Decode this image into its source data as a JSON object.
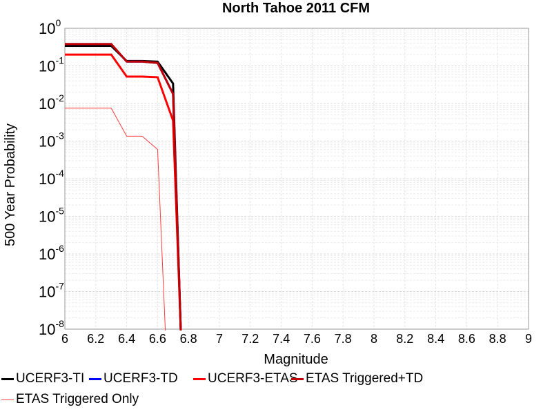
{
  "chart_data": {
    "type": "line",
    "title": "North Tahoe 2011 CFM",
    "xlabel": "Magnitude",
    "ylabel": "500 Year Probability",
    "xlim": [
      6,
      9
    ],
    "ylim": [
      1e-08,
      1
    ],
    "yscale": "log",
    "grid": true,
    "legend_position": "bottom",
    "x_ticks": [
      "6",
      "6.2",
      "6.4",
      "6.6",
      "6.8",
      "7",
      "7.2",
      "7.4",
      "7.6",
      "7.8",
      "8",
      "8.2",
      "8.4",
      "8.6",
      "8.8",
      "9"
    ],
    "y_ticks": [
      {
        "base": "10",
        "exp": "-8",
        "value": 1e-08
      },
      {
        "base": "10",
        "exp": "-7",
        "value": 1e-07
      },
      {
        "base": "10",
        "exp": "-6",
        "value": 1e-06
      },
      {
        "base": "10",
        "exp": "-5",
        "value": 1e-05
      },
      {
        "base": "10",
        "exp": "-4",
        "value": 0.0001
      },
      {
        "base": "10",
        "exp": "-3",
        "value": 0.001
      },
      {
        "base": "10",
        "exp": "-2",
        "value": 0.01
      },
      {
        "base": "10",
        "exp": "-1",
        "value": 0.1
      },
      {
        "base": "10",
        "exp": "0",
        "value": 1
      }
    ],
    "series": [
      {
        "name": "UCERF3-TI",
        "color": "#000000",
        "width": 3,
        "points": [
          [
            6.0,
            0.34
          ],
          [
            6.3,
            0.34
          ],
          [
            6.4,
            0.135
          ],
          [
            6.5,
            0.135
          ],
          [
            6.6,
            0.13
          ],
          [
            6.7,
            0.034
          ],
          [
            6.75,
            1e-09
          ]
        ]
      },
      {
        "name": "UCERF3-TD",
        "color": "#0000ff",
        "width": 3,
        "points": [
          [
            6.0,
            0.38
          ],
          [
            6.3,
            0.38
          ],
          [
            6.4,
            0.13
          ],
          [
            6.5,
            0.13
          ],
          [
            6.6,
            0.12
          ],
          [
            6.7,
            0.018
          ],
          [
            6.75,
            1e-09
          ]
        ]
      },
      {
        "name": "UCERF3-ETAS",
        "color": "#ff0000",
        "width": 3,
        "points": [
          [
            6.0,
            0.2
          ],
          [
            6.3,
            0.2
          ],
          [
            6.4,
            0.052
          ],
          [
            6.5,
            0.052
          ],
          [
            6.6,
            0.05
          ],
          [
            6.7,
            0.0035
          ],
          [
            6.75,
            1e-09
          ]
        ]
      },
      {
        "name": "ETAS Triggered+TD",
        "color": "#c00000",
        "width": 3,
        "points": [
          [
            6.0,
            0.38
          ],
          [
            6.3,
            0.38
          ],
          [
            6.4,
            0.13
          ],
          [
            6.5,
            0.13
          ],
          [
            6.6,
            0.12
          ],
          [
            6.7,
            0.018
          ],
          [
            6.75,
            1e-09
          ]
        ]
      },
      {
        "name": "ETAS Triggered Only",
        "color": "#ff3b3b",
        "width": 1,
        "points": [
          [
            6.0,
            0.0075
          ],
          [
            6.3,
            0.0075
          ],
          [
            6.4,
            0.00135
          ],
          [
            6.5,
            0.00135
          ],
          [
            6.6,
            0.0006
          ],
          [
            6.65,
            1e-09
          ]
        ]
      }
    ]
  }
}
